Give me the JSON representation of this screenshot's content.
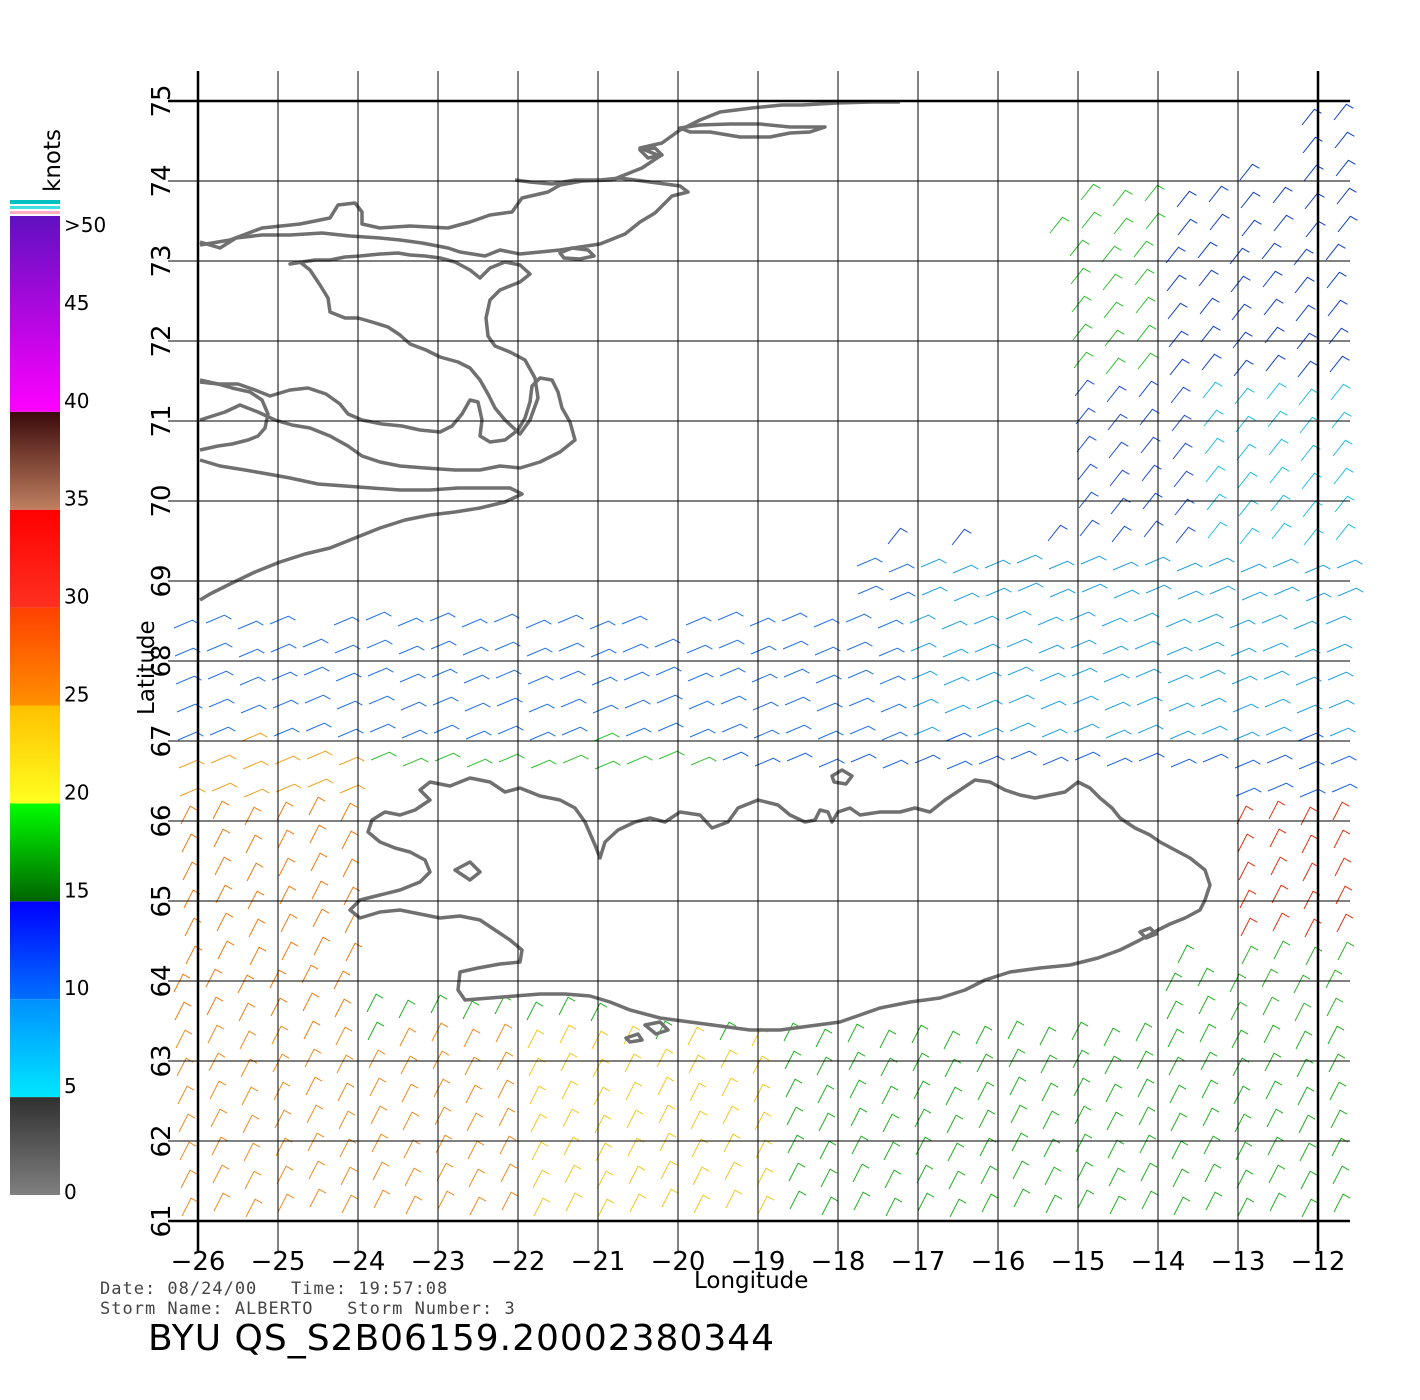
{
  "map": {
    "x_axis_label": "Longitude",
    "y_axis_label": "Latitude",
    "lon_ticks": [
      "−26",
      "−25",
      "−24",
      "−23",
      "−22",
      "−21",
      "−20",
      "−19",
      "−18",
      "−17",
      "−16",
      "−15",
      "−14",
      "−13",
      "−12"
    ],
    "lat_ticks": [
      "61",
      "62",
      "63",
      "64",
      "65",
      "66",
      "67",
      "68",
      "69",
      "70",
      "71",
      "72",
      "73",
      "74",
      "75"
    ],
    "lon_range": [
      -26,
      -12
    ],
    "lat_range": [
      61,
      75
    ],
    "coastline_color": "#707070"
  },
  "colorbar": {
    "unit_label": "knots",
    "top_label": ">50",
    "labels": [
      "45",
      "40",
      "35",
      "30",
      "25",
      "20",
      "15",
      "10",
      "5",
      "0"
    ],
    "bands": [
      {
        "from": 0,
        "to": 5,
        "colors": [
          "#808080",
          "#303030"
        ]
      },
      {
        "from": 5,
        "to": 10,
        "colors": [
          "#00e6ff",
          "#0090ff"
        ]
      },
      {
        "from": 10,
        "to": 15,
        "colors": [
          "#0070ff",
          "#0000ff"
        ]
      },
      {
        "from": 15,
        "to": 20,
        "colors": [
          "#006400",
          "#00ff00"
        ]
      },
      {
        "from": 20,
        "to": 25,
        "colors": [
          "#ffff20",
          "#ffc000"
        ]
      },
      {
        "from": 25,
        "to": 30,
        "colors": [
          "#ff9000",
          "#ff4000"
        ]
      },
      {
        "from": 30,
        "to": 35,
        "colors": [
          "#ff3020",
          "#ff0000"
        ]
      },
      {
        "from": 35,
        "to": 40,
        "colors": [
          "#c08060",
          "#3a0a0a"
        ]
      },
      {
        "from": 40,
        "to": 50,
        "colors": [
          "#ff00ff",
          "#6010c0"
        ]
      }
    ]
  },
  "info": {
    "line1": "Date: 08/24/00   Time: 19:57:08",
    "line2": "Storm Name: ALBERTO   Storm Number: 3",
    "product": "BYU QS_S2B06159.20002380344"
  }
}
